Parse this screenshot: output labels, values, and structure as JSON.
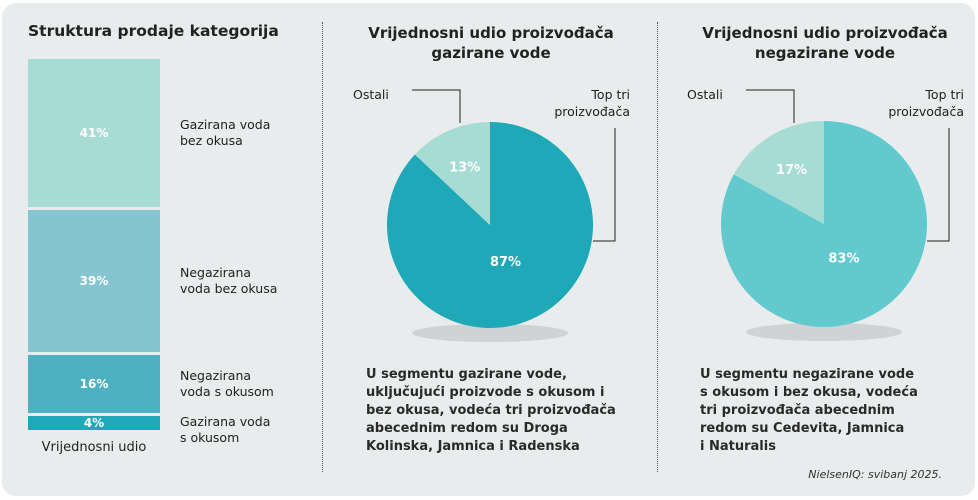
{
  "chart_data": [
    {
      "type": "bar",
      "subtype": "stacked-100",
      "title": "Struktura prodaje kategorija",
      "xlabel": "Vrijednosni udio",
      "categories": [
        "Gazirana voda bez okusa",
        "Negazirana voda bez okusa",
        "Negazirana voda s okusom",
        "Gazirana voda s okusom"
      ],
      "label_lines": [
        [
          "Gazirana voda",
          "bez okusa"
        ],
        [
          "Negazirana",
          "voda bez okusa"
        ],
        [
          "Negazirana",
          "voda s okusom"
        ],
        [
          "Gazirana voda",
          "s okusom"
        ]
      ],
      "values": [
        41,
        39,
        16,
        4
      ],
      "value_labels": [
        "41%",
        "39%",
        "16%",
        "4%"
      ],
      "colors": [
        "#a6dcd4",
        "#84c5d0",
        "#4db1c1",
        "#1ea8b8"
      ]
    },
    {
      "type": "pie",
      "title_lines": [
        "Vrijednosni udio proizvođača",
        "gazirane vode"
      ],
      "slices": [
        {
          "label": "Top tri proizvođača",
          "label_lines": [
            "Top tri",
            "proizvođača"
          ],
          "value": 87,
          "value_label": "87%",
          "color": "#1ea8b8"
        },
        {
          "label": "Ostali",
          "label_lines": [
            "Ostali"
          ],
          "value": 13,
          "value_label": "13%",
          "color": "#a6dcd4"
        }
      ],
      "description_lines": [
        "U segmentu gazirane vode,",
        "uključujući proizvode s okusom i",
        "bez okusa, vodeća tri proizvođača",
        "abecednim redom su Droga",
        "Kolinska, Jamnica i Radenska"
      ]
    },
    {
      "type": "pie",
      "title_lines": [
        "Vrijednosni udio proizvođača",
        "negazirane vode"
      ],
      "slices": [
        {
          "label": "Top tri proizvođača",
          "label_lines": [
            "Top tri",
            "proizvođača"
          ],
          "value": 83,
          "value_label": "83%",
          "color": "#62c9cf"
        },
        {
          "label": "Ostali",
          "label_lines": [
            "Ostali"
          ],
          "value": 17,
          "value_label": "17%",
          "color": "#a6dcd4"
        }
      ],
      "description_lines": [
        "U segmentu negazirane vode",
        "s okusom i bez okusa, vodeća",
        "tri proizvođača abecednim",
        "redom su Cedevita, Jamnica",
        "i Naturalis"
      ]
    }
  ],
  "source": "NielsenIQ: svibanj 2025."
}
